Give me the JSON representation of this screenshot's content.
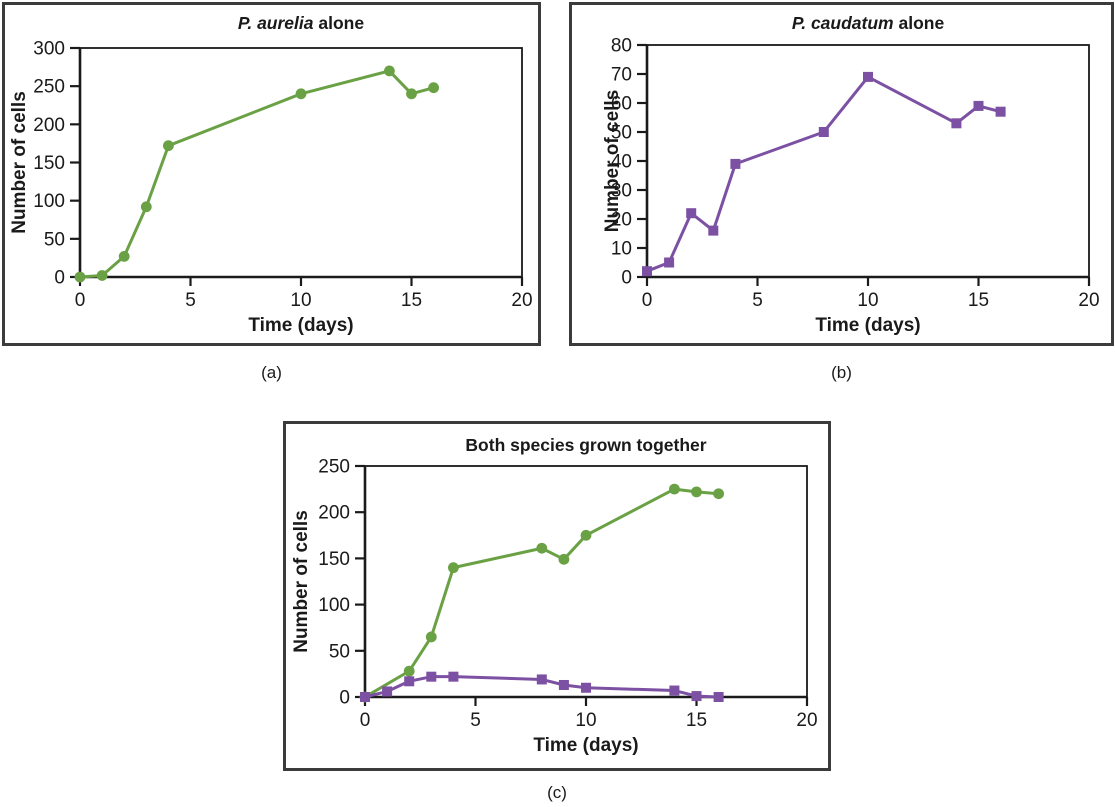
{
  "figure": {
    "captions": {
      "a": "(a)",
      "b": "(b)",
      "c": "(c)"
    }
  },
  "colors": {
    "aurelia_green": "#6AA144",
    "caudatum_purple": "#7C50A2",
    "axis_ink": "#1a1a1a",
    "panel_border": "#3b3b3b"
  },
  "chart_data": [
    {
      "id": "a",
      "type": "line",
      "title_parts": [
        {
          "text": "P. aurelia",
          "italic": true
        },
        {
          "text": " alone",
          "italic": false
        }
      ],
      "xlabel": "Time (days)",
      "ylabel": "Number of cells",
      "xlim": [
        0,
        20
      ],
      "ylim": [
        0,
        300
      ],
      "xticks": [
        0,
        5,
        10,
        15,
        20
      ],
      "yticks": [
        0,
        50,
        100,
        150,
        200,
        250,
        300
      ],
      "grid": false,
      "legend": "none",
      "series": [
        {
          "name": "P. aurelia",
          "color": "#6AA144",
          "marker": "circle",
          "points": [
            [
              0,
              0
            ],
            [
              1,
              2
            ],
            [
              2,
              27
            ],
            [
              3,
              92
            ],
            [
              4,
              172
            ],
            [
              10,
              240
            ],
            [
              14,
              270
            ],
            [
              15,
              240
            ],
            [
              16,
              248
            ]
          ]
        }
      ]
    },
    {
      "id": "b",
      "type": "line",
      "title_parts": [
        {
          "text": "P. caudatum",
          "italic": true
        },
        {
          "text": " alone",
          "italic": false
        }
      ],
      "xlabel": "Time (days)",
      "ylabel": "Number of cells",
      "xlim": [
        0,
        20
      ],
      "ylim": [
        0,
        80
      ],
      "xticks": [
        0,
        5,
        10,
        15,
        20
      ],
      "yticks": [
        0,
        10,
        20,
        30,
        40,
        50,
        60,
        70,
        80
      ],
      "grid": false,
      "legend": "none",
      "series": [
        {
          "name": "P. caudatum",
          "color": "#7C50A2",
          "marker": "square",
          "points": [
            [
              0,
              2
            ],
            [
              1,
              5
            ],
            [
              2,
              22
            ],
            [
              3,
              16
            ],
            [
              4,
              39
            ],
            [
              8,
              50
            ],
            [
              10,
              69
            ],
            [
              14,
              53
            ],
            [
              15,
              59
            ],
            [
              16,
              57
            ]
          ]
        }
      ]
    },
    {
      "id": "c",
      "type": "line",
      "title_parts": [
        {
          "text": "Both species grown together",
          "italic": false
        }
      ],
      "xlabel": "Time (days)",
      "ylabel": "Number of cells",
      "xlim": [
        0,
        20
      ],
      "ylim": [
        0,
        250
      ],
      "xticks": [
        0,
        5,
        10,
        15,
        20
      ],
      "yticks": [
        0,
        50,
        100,
        150,
        200,
        250
      ],
      "grid": false,
      "legend": "none",
      "series": [
        {
          "name": "P. aurelia",
          "color": "#6AA144",
          "marker": "circle",
          "points": [
            [
              0,
              0
            ],
            [
              2,
              28
            ],
            [
              3,
              65
            ],
            [
              4,
              140
            ],
            [
              8,
              161
            ],
            [
              9,
              149
            ],
            [
              10,
              175
            ],
            [
              14,
              225
            ],
            [
              15,
              222
            ],
            [
              16,
              220
            ]
          ]
        },
        {
          "name": "P. caudatum",
          "color": "#7C50A2",
          "marker": "square",
          "points": [
            [
              0,
              0
            ],
            [
              1,
              6
            ],
            [
              2,
              17
            ],
            [
              3,
              22
            ],
            [
              4,
              22
            ],
            [
              8,
              19
            ],
            [
              9,
              13
            ],
            [
              10,
              10
            ],
            [
              14,
              7
            ],
            [
              15,
              1
            ],
            [
              16,
              0
            ]
          ]
        }
      ]
    }
  ]
}
